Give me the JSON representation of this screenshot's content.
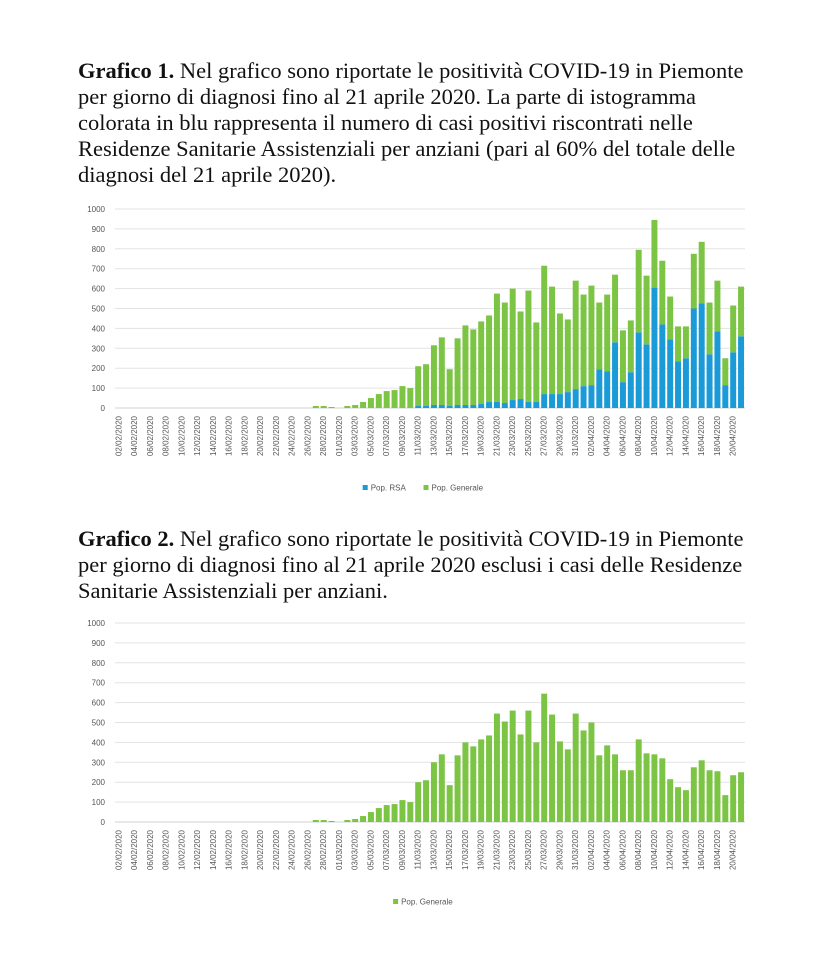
{
  "captions": [
    {
      "label": "Grafico 1.",
      "text": "Nel grafico sono riportate le positività COVID-19 in Piemonte per giorno di diagnosi fino al 21 aprile 2020. La parte di istogramma colorata in blu rappresenta il numero di casi positivi riscontrati nelle Residenze Sanitarie Assistenziali per anziani (pari al 60% del totale delle diagnosi del 21 aprile 2020)."
    },
    {
      "label": "Grafico 2.",
      "text": "Nel grafico sono riportate le positività COVID-19 in Piemonte per giorno di diagnosi fino al 21 aprile 2020 esclusi i casi delle Residenze Sanitarie Assistenziali per anziani."
    }
  ],
  "chart_data": [
    {
      "type": "stacked_bar",
      "categories": [
        "02/02/2020",
        null,
        "04/02/2020",
        null,
        "06/02/2020",
        null,
        "08/02/2020",
        null,
        "10/02/2020",
        null,
        "12/02/2020",
        null,
        "14/02/2020",
        null,
        "16/02/2020",
        null,
        "18/02/2020",
        null,
        "20/02/2020",
        null,
        "22/02/2020",
        null,
        "24/02/2020",
        null,
        "26/02/2020",
        null,
        "28/02/2020",
        null,
        "01/03/2020",
        null,
        "03/03/2020",
        null,
        "05/03/2020",
        null,
        "07/03/2020",
        null,
        "09/03/2020",
        null,
        "11/03/2020",
        null,
        "13/03/2020",
        null,
        "15/03/2020",
        null,
        "17/03/2020",
        null,
        "19/03/2020",
        null,
        "21/03/2020",
        null,
        "23/03/2020",
        null,
        "25/03/2020",
        null,
        "27/03/2020",
        null,
        "29/03/2020",
        null,
        "31/03/2020",
        null,
        "02/04/2020",
        null,
        "04/04/2020",
        null,
        "06/04/2020",
        null,
        "08/04/2020",
        null,
        "10/04/2020",
        null,
        "12/04/2020",
        null,
        "14/04/2020",
        null,
        "16/04/2020",
        null,
        "18/04/2020",
        null,
        "20/04/2020",
        null
      ],
      "series": [
        {
          "name": "Pop. RSA",
          "color": "#1b9ad8",
          "values": [
            0,
            0,
            0,
            0,
            0,
            0,
            0,
            0,
            0,
            0,
            0,
            0,
            0,
            0,
            0,
            0,
            0,
            0,
            0,
            0,
            0,
            0,
            0,
            0,
            0,
            0,
            0,
            0,
            0,
            0,
            0,
            0,
            0,
            0,
            0,
            0,
            0,
            0,
            10,
            10,
            15,
            15,
            10,
            15,
            15,
            15,
            20,
            30,
            30,
            25,
            40,
            45,
            30,
            30,
            70,
            70,
            70,
            80,
            95,
            110,
            115,
            195,
            185,
            330,
            130,
            180,
            380,
            320,
            605,
            420,
            345,
            235,
            250,
            500,
            525,
            270,
            385,
            115,
            280,
            360
          ]
        },
        {
          "name": "Pop. Generale",
          "color": "#7cc443",
          "values": [
            0,
            0,
            0,
            0,
            0,
            0,
            0,
            0,
            0,
            0,
            0,
            0,
            0,
            0,
            0,
            0,
            0,
            0,
            0,
            0,
            0,
            0,
            0,
            0,
            0,
            10,
            10,
            5,
            0,
            10,
            15,
            30,
            50,
            70,
            85,
            90,
            110,
            100,
            200,
            210,
            300,
            340,
            185,
            335,
            400,
            380,
            415,
            435,
            545,
            505,
            560,
            440,
            560,
            400,
            645,
            540,
            405,
            365,
            545,
            460,
            500,
            335,
            385,
            340,
            260,
            260,
            415,
            345,
            340,
            320,
            215,
            175,
            160,
            275,
            310,
            260,
            255,
            135,
            235,
            250
          ]
        }
      ],
      "ylim": [
        0,
        1000
      ],
      "yticks": [
        0,
        100,
        200,
        300,
        400,
        500,
        600,
        700,
        800,
        900,
        1000
      ],
      "grid": true,
      "legend": "bottom"
    },
    {
      "type": "bar",
      "categories": [
        "02/02/2020",
        null,
        "04/02/2020",
        null,
        "06/02/2020",
        null,
        "08/02/2020",
        null,
        "10/02/2020",
        null,
        "12/02/2020",
        null,
        "14/02/2020",
        null,
        "16/02/2020",
        null,
        "18/02/2020",
        null,
        "20/02/2020",
        null,
        "22/02/2020",
        null,
        "24/02/2020",
        null,
        "26/02/2020",
        null,
        "28/02/2020",
        null,
        "01/03/2020",
        null,
        "03/03/2020",
        null,
        "05/03/2020",
        null,
        "07/03/2020",
        null,
        "09/03/2020",
        null,
        "11/03/2020",
        null,
        "13/03/2020",
        null,
        "15/03/2020",
        null,
        "17/03/2020",
        null,
        "19/03/2020",
        null,
        "21/03/2020",
        null,
        "23/03/2020",
        null,
        "25/03/2020",
        null,
        "27/03/2020",
        null,
        "29/03/2020",
        null,
        "31/03/2020",
        null,
        "02/04/2020",
        null,
        "04/04/2020",
        null,
        "06/04/2020",
        null,
        "08/04/2020",
        null,
        "10/04/2020",
        null,
        "12/04/2020",
        null,
        "14/04/2020",
        null,
        "16/04/2020",
        null,
        "18/04/2020",
        null,
        "20/04/2020",
        null
      ],
      "series": [
        {
          "name": "Pop. Generale",
          "color": "#7cc443",
          "values": [
            0,
            0,
            0,
            0,
            0,
            0,
            0,
            0,
            0,
            0,
            0,
            0,
            0,
            0,
            0,
            0,
            0,
            0,
            0,
            0,
            0,
            0,
            0,
            0,
            0,
            10,
            10,
            5,
            0,
            10,
            15,
            30,
            50,
            70,
            85,
            90,
            110,
            100,
            200,
            210,
            300,
            340,
            185,
            335,
            400,
            380,
            415,
            435,
            545,
            505,
            560,
            440,
            560,
            400,
            645,
            540,
            405,
            365,
            545,
            460,
            500,
            335,
            385,
            340,
            260,
            260,
            415,
            345,
            340,
            320,
            215,
            175,
            160,
            275,
            310,
            260,
            255,
            135,
            235,
            250
          ]
        }
      ],
      "ylim": [
        0,
        1000
      ],
      "yticks": [
        0,
        100,
        200,
        300,
        400,
        500,
        600,
        700,
        800,
        900,
        1000
      ],
      "grid": true,
      "legend": "bottom"
    }
  ]
}
